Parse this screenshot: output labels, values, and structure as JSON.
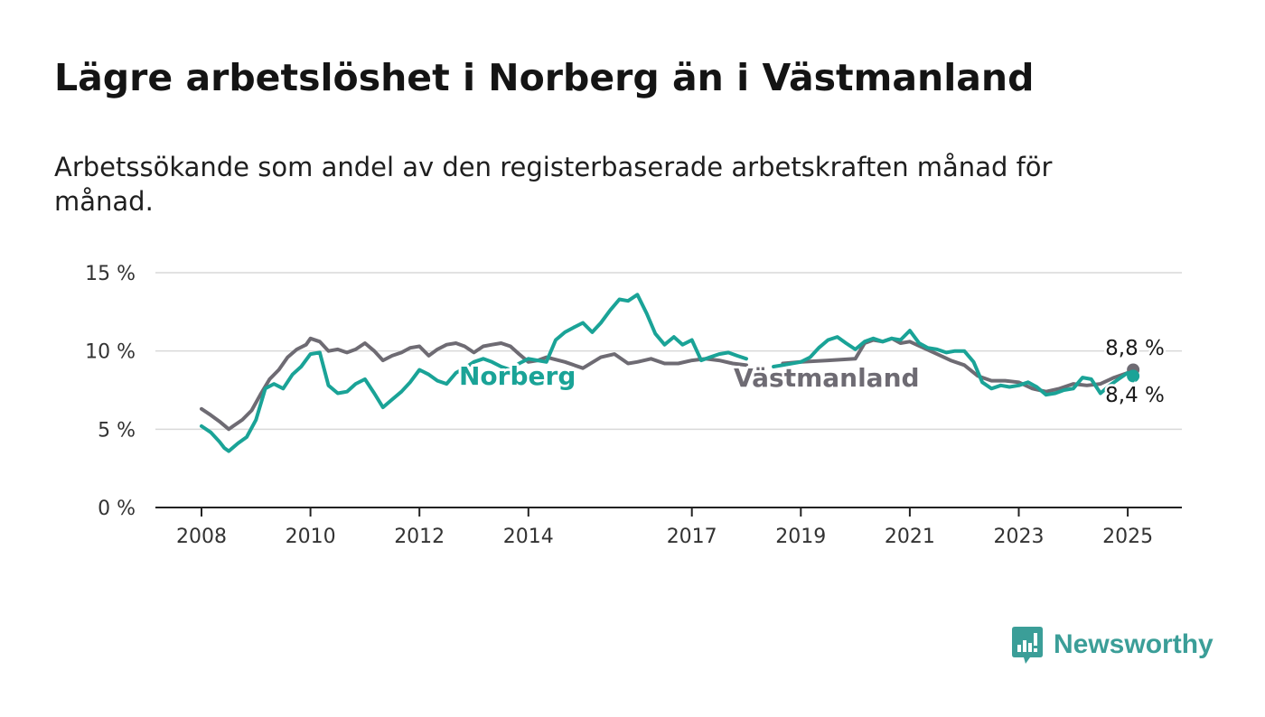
{
  "title": "Lägre arbetslöshet i Norberg än i Västmanland",
  "subtitle": "Arbetssökande som andel av den registerbaserade arbetskraften månad för månad.",
  "brand": {
    "name": "Newsworthy",
    "color": "#3b9e98"
  },
  "chart_data": {
    "type": "line",
    "xlabel": "",
    "ylabel": "",
    "xlim": [
      2007.6,
      2026.0
    ],
    "ylim": [
      0,
      15
    ],
    "y_ticks": [
      0,
      5,
      10,
      15
    ],
    "y_tick_labels": [
      "0 %",
      "5 %",
      "10 %",
      "15 %"
    ],
    "x_ticks": [
      2008,
      2010,
      2012,
      2014,
      2017,
      2019,
      2021,
      2023,
      2025
    ],
    "x_tick_labels": [
      "2008",
      "2010",
      "2012",
      "2014",
      "2017",
      "2019",
      "2021",
      "2023",
      "2025"
    ],
    "grid": true,
    "legend": "inline labels",
    "end_labels": [
      "8,8 %",
      "8,4 %"
    ],
    "series": [
      {
        "name": "Västmanland",
        "color": "#6e6b73",
        "x": [
          2008.0,
          2008.17,
          2008.33,
          2008.5,
          2008.58,
          2008.75,
          2008.92,
          2009.08,
          2009.25,
          2009.42,
          2009.58,
          2009.75,
          2009.92,
          2010.0,
          2010.17,
          2010.33,
          2010.5,
          2010.67,
          2010.83,
          2011.0,
          2011.17,
          2011.33,
          2011.5,
          2011.67,
          2011.83,
          2012.0,
          2012.17,
          2012.33,
          2012.5,
          2012.67,
          2012.83,
          2013.0,
          2013.17,
          2013.33,
          2013.5,
          2013.67,
          2013.83,
          2014.0,
          2014.17,
          2014.33,
          2014.67,
          2015.0,
          2015.33,
          2015.58,
          2015.83,
          2016.0,
          2016.25,
          2016.5,
          2016.75,
          2017.0,
          2017.25,
          2017.5,
          2017.75,
          2018.0,
          null,
          2018.67,
          2019.0,
          2019.5,
          2020.0,
          2020.17,
          2020.33,
          2020.5,
          2020.67,
          2020.83,
          2021.0,
          2021.25,
          2021.5,
          2021.75,
          2022.0,
          2022.25,
          2022.5,
          2022.75,
          2023.0,
          2023.25,
          2023.5,
          2023.75,
          2024.0,
          2024.25,
          2024.5,
          2024.75,
          2025.0,
          2025.1
        ],
        "values": [
          6.3,
          5.9,
          5.5,
          5.0,
          5.2,
          5.6,
          6.2,
          7.2,
          8.2,
          8.8,
          9.6,
          10.1,
          10.4,
          10.8,
          10.6,
          10.0,
          10.1,
          9.9,
          10.1,
          10.5,
          10.0,
          9.4,
          9.7,
          9.9,
          10.2,
          10.3,
          9.7,
          10.1,
          10.4,
          10.5,
          10.3,
          9.9,
          10.3,
          10.4,
          10.5,
          10.3,
          9.8,
          9.3,
          9.4,
          9.6,
          9.3,
          8.9,
          9.6,
          9.8,
          9.2,
          9.3,
          9.5,
          9.2,
          9.2,
          9.4,
          9.5,
          9.4,
          9.2,
          9.1,
          null,
          9.2,
          9.3,
          9.4,
          9.5,
          10.5,
          10.7,
          10.6,
          10.8,
          10.5,
          10.6,
          10.2,
          9.8,
          9.4,
          9.1,
          8.4,
          8.1,
          8.1,
          8.0,
          7.6,
          7.4,
          7.6,
          7.9,
          7.8,
          7.9,
          8.3,
          8.6,
          8.8
        ]
      },
      {
        "name": "Norberg",
        "color": "#1aa397",
        "x": [
          2008.0,
          2008.17,
          2008.33,
          2008.42,
          2008.5,
          2008.67,
          2008.83,
          2009.0,
          2009.17,
          2009.33,
          2009.5,
          2009.67,
          2009.83,
          2010.0,
          2010.17,
          2010.33,
          2010.5,
          2010.67,
          2010.83,
          2011.0,
          2011.17,
          2011.33,
          2011.5,
          2011.67,
          2011.83,
          2012.0,
          2012.17,
          2012.33,
          2012.5,
          2012.67,
          2012.83,
          2013.0,
          2013.17,
          2013.33,
          2013.5,
          2013.67,
          2013.83,
          2014.0,
          2014.17,
          2014.33,
          2014.5,
          2014.67,
          2014.83,
          2015.0,
          2015.17,
          2015.33,
          2015.5,
          2015.67,
          2015.83,
          2016.0,
          2016.17,
          2016.33,
          2016.5,
          2016.67,
          2016.83,
          2017.0,
          2017.17,
          2017.33,
          2017.5,
          2017.67,
          2017.83,
          2018.0,
          null,
          2018.5,
          2018.67,
          2019.0,
          2019.17,
          2019.33,
          2019.5,
          2019.67,
          2019.83,
          2020.0,
          2020.17,
          2020.33,
          2020.5,
          2020.67,
          2020.83,
          2021.0,
          2021.17,
          2021.33,
          2021.5,
          2021.67,
          2021.83,
          2022.0,
          2022.17,
          2022.33,
          2022.5,
          2022.67,
          2022.83,
          2023.0,
          2023.17,
          2023.33,
          2023.5,
          2023.67,
          2023.83,
          2024.0,
          2024.17,
          2024.33,
          2024.5,
          2024.67,
          2024.83,
          2025.0,
          2025.1
        ],
        "values": [
          5.2,
          4.8,
          4.2,
          3.8,
          3.6,
          4.1,
          4.5,
          5.6,
          7.6,
          7.9,
          7.6,
          8.5,
          9.0,
          9.8,
          9.9,
          7.8,
          7.3,
          7.4,
          7.9,
          8.2,
          7.3,
          6.4,
          6.9,
          7.4,
          8.0,
          8.8,
          8.5,
          8.1,
          7.9,
          8.6,
          8.9,
          9.3,
          9.5,
          9.3,
          9.0,
          8.8,
          9.2,
          9.5,
          9.4,
          9.3,
          10.7,
          11.2,
          11.5,
          11.8,
          11.2,
          11.8,
          12.6,
          13.3,
          13.2,
          13.6,
          12.4,
          11.1,
          10.4,
          10.9,
          10.4,
          10.7,
          9.4,
          9.6,
          9.8,
          9.9,
          9.7,
          9.5,
          null,
          9.0,
          9.1,
          9.3,
          9.6,
          10.2,
          10.7,
          10.9,
          10.5,
          10.1,
          10.6,
          10.8,
          10.6,
          10.8,
          10.7,
          11.3,
          10.5,
          10.2,
          10.1,
          9.9,
          10.0,
          10.0,
          9.3,
          8.0,
          7.6,
          7.8,
          7.7,
          7.8,
          8.0,
          7.7,
          7.2,
          7.3,
          7.5,
          7.6,
          8.3,
          8.2,
          7.3,
          7.8,
          8.2,
          8.6,
          8.4
        ]
      }
    ]
  }
}
